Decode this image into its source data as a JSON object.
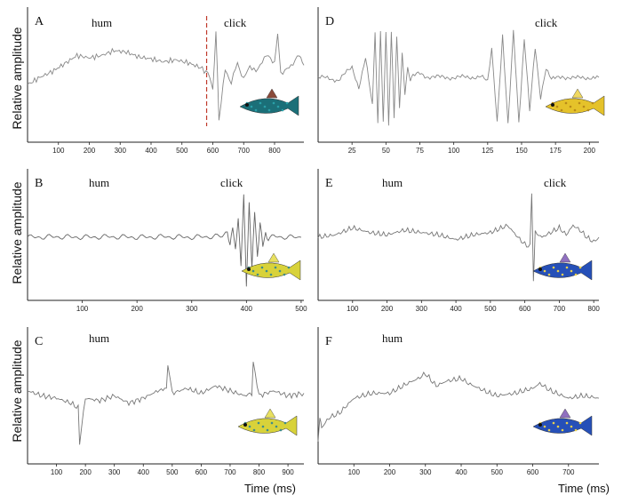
{
  "figure": {
    "ylabel": "Relative amplitude",
    "xlabel": "Time (ms)"
  },
  "chart_data": [
    {
      "type": "line",
      "letter": "A",
      "annotations": [
        "hum",
        "click"
      ],
      "xticks": [
        100,
        200,
        300,
        400,
        500,
        600,
        700,
        800
      ],
      "xlim": [
        0,
        895
      ],
      "marker_x": 580,
      "series": [
        {
          "color": "#888888",
          "x": [
            0,
            40,
            80,
            120,
            160,
            200,
            240,
            280,
            320,
            360,
            400,
            440,
            480,
            520,
            560,
            590,
            600,
            610,
            620,
            640,
            660,
            680,
            700,
            720,
            740,
            760,
            780,
            800,
            810,
            820,
            840,
            860,
            880,
            895
          ],
          "y": [
            -0.15,
            0.0,
            0.12,
            0.28,
            0.45,
            0.4,
            0.45,
            0.55,
            0.52,
            0.42,
            0.38,
            0.32,
            0.36,
            0.3,
            0.2,
            0.05,
            -0.3,
            0.95,
            -0.85,
            0.15,
            -0.1,
            0.3,
            -0.05,
            0.25,
            0.1,
            0.35,
            0.45,
            0.3,
            0.9,
            0.1,
            0.15,
            0.3,
            0.45,
            0.25
          ]
        }
      ],
      "fish": "cowfish-dark-blue"
    },
    {
      "type": "line",
      "letter": "B",
      "annotations": [
        "hum",
        "click"
      ],
      "xticks": [
        100,
        200,
        300,
        400,
        500
      ],
      "xlim": [
        0,
        505
      ],
      "series": [
        {
          "color": "#666666",
          "x": [
            0,
            50,
            100,
            150,
            200,
            250,
            300,
            350,
            365,
            370,
            375,
            380,
            385,
            390,
            395,
            400,
            405,
            410,
            415,
            420,
            425,
            430,
            435,
            440,
            450,
            460,
            480,
            500
          ],
          "y": [
            0,
            0.01,
            0,
            0.01,
            0,
            0.01,
            0,
            0.02,
            0.08,
            -0.12,
            0.2,
            -0.3,
            0.45,
            -0.6,
            0.85,
            -1.0,
            0.75,
            -0.7,
            0.55,
            -0.4,
            0.3,
            -0.2,
            0.1,
            -0.05,
            0.02,
            0.01,
            0,
            0
          ]
        }
      ],
      "fish": "boxfish-yellow"
    },
    {
      "type": "line",
      "letter": "C",
      "annotations": [
        "hum"
      ],
      "xticks": [
        100,
        200,
        300,
        400,
        500,
        600,
        700,
        800,
        900
      ],
      "xlim": [
        0,
        955
      ],
      "series": [
        {
          "color": "#777777",
          "x": [
            0,
            50,
            100,
            150,
            175,
            180,
            200,
            250,
            300,
            350,
            400,
            450,
            480,
            485,
            500,
            550,
            600,
            650,
            700,
            750,
            775,
            780,
            800,
            850,
            900,
            955
          ],
          "y": [
            0.15,
            0.05,
            0.0,
            -0.1,
            -0.2,
            -0.9,
            0.0,
            -0.05,
            0.05,
            -0.1,
            0.0,
            0.15,
            0.2,
            0.65,
            0.1,
            0.2,
            0.1,
            0.25,
            0.15,
            0.05,
            0.1,
            0.75,
            0.05,
            0.15,
            0.05,
            0.1
          ]
        }
      ],
      "fish": "boxfish-yellow"
    },
    {
      "type": "line",
      "letter": "D",
      "annotations": [
        "click"
      ],
      "xticks": [
        25,
        50,
        75,
        100,
        125,
        150,
        175,
        200
      ],
      "xlim": [
        0,
        207
      ],
      "series": [
        {
          "color": "#888888",
          "x": [
            0,
            15,
            25,
            30,
            35,
            40,
            42,
            44,
            46,
            48,
            50,
            52,
            54,
            56,
            58,
            60,
            62,
            64,
            66,
            68,
            70,
            75,
            80,
            90,
            100,
            110,
            120,
            125,
            128,
            132,
            136,
            140,
            144,
            148,
            152,
            156,
            160,
            164,
            168,
            172,
            180,
            190,
            200,
            207
          ],
          "y": [
            0,
            -0.05,
            0.2,
            -0.2,
            0.4,
            -0.6,
            0.95,
            -0.95,
            1.0,
            -0.9,
            0.95,
            -1.0,
            0.9,
            -0.85,
            0.8,
            -0.6,
            0.5,
            -0.3,
            0.2,
            -0.05,
            0.02,
            0.08,
            0.02,
            0.0,
            0.0,
            0.0,
            0.02,
            -0.1,
            0.6,
            -0.9,
            0.85,
            -1.0,
            0.95,
            -0.9,
            0.8,
            -0.7,
            0.6,
            -0.4,
            0.2,
            -0.05,
            0.02,
            -0.02,
            0.0,
            0.0
          ]
        }
      ],
      "fish": "longhorn-cowfish-yellow"
    },
    {
      "type": "line",
      "letter": "E",
      "annotations": [
        "hum",
        "click"
      ],
      "xticks": [
        100,
        200,
        300,
        400,
        500,
        600,
        700,
        800
      ],
      "xlim": [
        0,
        815
      ],
      "series": [
        {
          "color": "#777777",
          "x": [
            0,
            50,
            100,
            150,
            200,
            250,
            300,
            350,
            400,
            450,
            500,
            550,
            580,
            600,
            615,
            620,
            625,
            630,
            650,
            700,
            720,
            740,
            760,
            780,
            800,
            815
          ],
          "y": [
            0.0,
            0.05,
            0.2,
            0.1,
            0.05,
            0.15,
            0.1,
            0.05,
            -0.05,
            0.05,
            0.1,
            0.25,
            0.0,
            -0.15,
            -0.2,
            0.95,
            -0.9,
            0.1,
            0.0,
            0.2,
            0.05,
            0.25,
            0.15,
            0.0,
            -0.1,
            0.0
          ]
        }
      ],
      "fish": "boxfish-blue-spotted"
    },
    {
      "type": "line",
      "letter": "F",
      "annotations": [
        "hum"
      ],
      "xticks": [
        100,
        200,
        300,
        400,
        500,
        600,
        700
      ],
      "xlim": [
        0,
        785
      ],
      "series": [
        {
          "color": "#777777",
          "x": [
            0,
            5,
            10,
            30,
            60,
            100,
            150,
            200,
            250,
            280,
            300,
            330,
            360,
            400,
            420,
            450,
            480,
            500,
            550,
            600,
            620,
            650,
            700,
            740,
            785
          ],
          "y": [
            -0.9,
            -0.4,
            -0.6,
            -0.4,
            -0.3,
            0.0,
            0.1,
            0.1,
            0.3,
            0.4,
            0.5,
            0.25,
            0.35,
            0.4,
            0.3,
            0.2,
            0.1,
            0.05,
            0.1,
            0.2,
            0.3,
            0.15,
            0.0,
            0.05,
            0.0
          ]
        }
      ],
      "fish": "boxfish-blue-spotted"
    }
  ]
}
